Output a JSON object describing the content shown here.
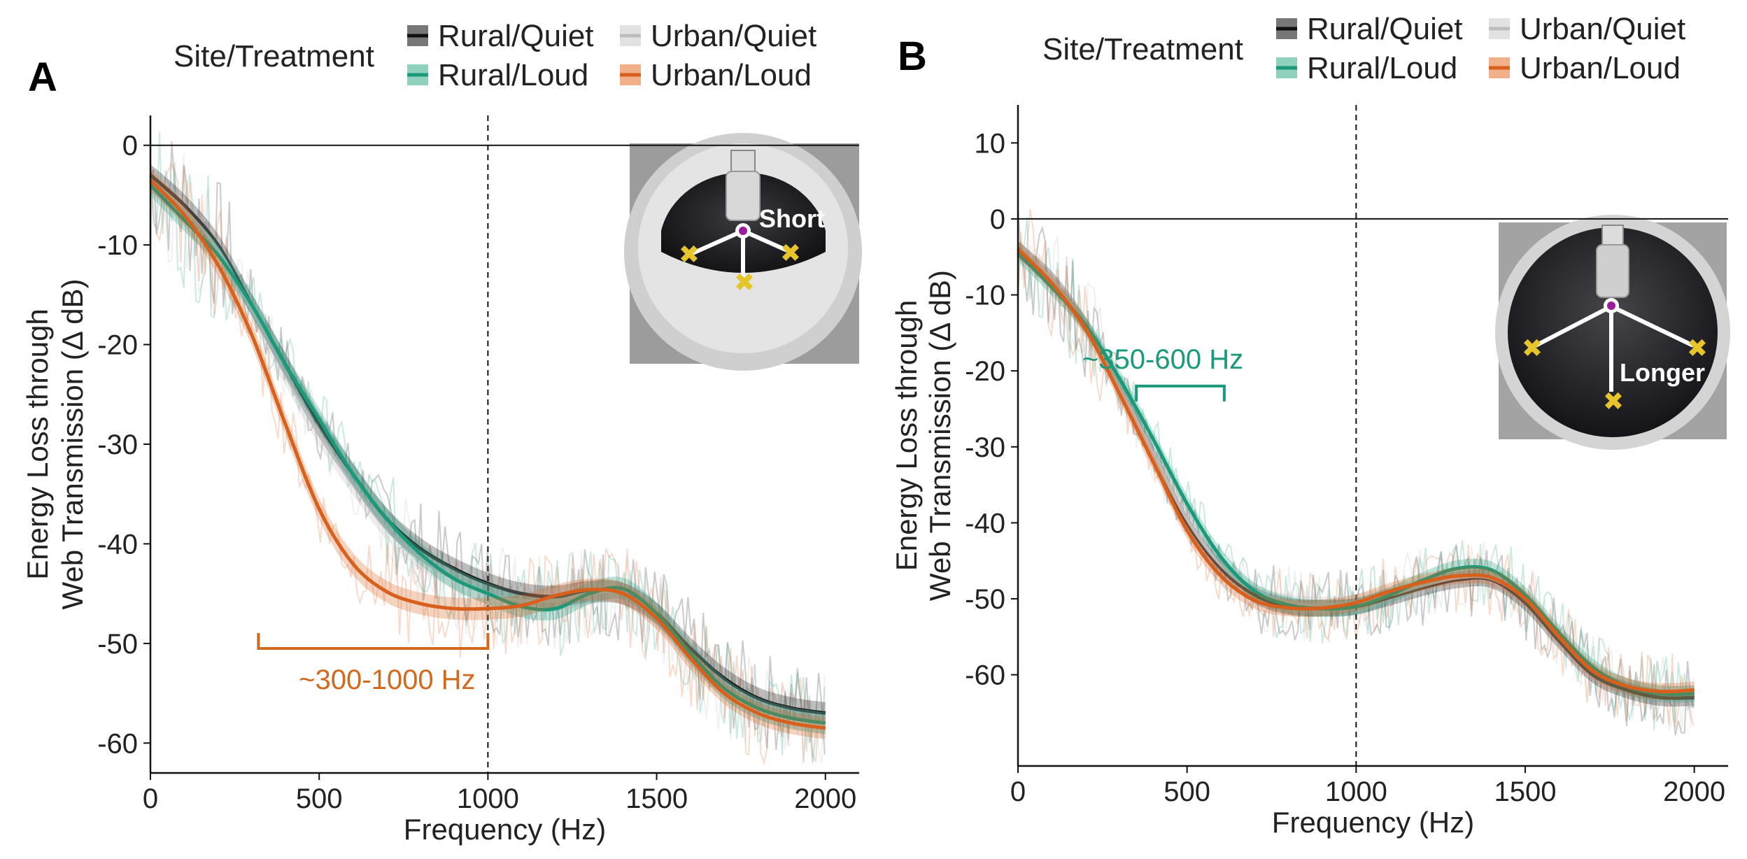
{
  "legend": {
    "title": "Site/Treatment",
    "entries": [
      "Rural/Quiet",
      "Urban/Quiet",
      "Rural/Loud",
      "Urban/Loud"
    ]
  },
  "colors": {
    "Rural/Quiet": "#111111",
    "Urban/Quiet": "#bdbdbd",
    "Rural/Loud": "#1a9a7a",
    "Urban/Loud": "#d9601c"
  },
  "chart_data": [
    {
      "type": "line",
      "panel": "A",
      "xlabel": "Frequency (Hz)",
      "ylabel": [
        "Energy Loss through",
        "Web Transmission (Δ dB)"
      ],
      "xlim": [
        0,
        2100
      ],
      "ylim": [
        -63,
        3
      ],
      "xticks": [
        "0",
        "500",
        "1000",
        "1500",
        "2000"
      ],
      "yticks": [
        "0",
        "-10",
        "-20",
        "-30",
        "-40",
        "-50",
        "-60"
      ],
      "hline": 0,
      "vline": 1000,
      "grid": false,
      "legend_position": "top",
      "x": [
        0,
        100,
        200,
        300,
        400,
        500,
        600,
        700,
        800,
        900,
        1000,
        1100,
        1200,
        1300,
        1400,
        1500,
        1600,
        1700,
        1800,
        1900,
        2000
      ],
      "series": [
        {
          "name": "Rural/Quiet",
          "values": [
            -3,
            -6,
            -10,
            -16,
            -22,
            -28,
            -33,
            -37.5,
            -40.5,
            -42.5,
            -44,
            -45,
            -45.3,
            -44.8,
            -45,
            -47,
            -50.5,
            -53.5,
            -55.5,
            -56.5,
            -57
          ]
        },
        {
          "name": "Urban/Quiet",
          "values": [
            -3.5,
            -6.5,
            -10.5,
            -16.5,
            -23,
            -29,
            -34,
            -38.5,
            -41.5,
            -43.5,
            -45,
            -45.7,
            -45.7,
            -45,
            -45,
            -47.3,
            -51,
            -54.5,
            -56.5,
            -57.5,
            -58
          ]
        },
        {
          "name": "Rural/Loud",
          "values": [
            -4,
            -7.5,
            -11,
            -16,
            -22,
            -27.5,
            -33,
            -37.5,
            -41,
            -43.5,
            -45,
            -46.3,
            -46.5,
            -45,
            -44.5,
            -47,
            -51,
            -54.5,
            -56.5,
            -57.5,
            -58
          ]
        },
        {
          "name": "Urban/Loud",
          "values": [
            -3.5,
            -7,
            -12,
            -19,
            -28,
            -36.5,
            -42,
            -44.8,
            -46,
            -46.5,
            -46.5,
            -46.2,
            -45.2,
            -44.6,
            -45,
            -47.5,
            -51.5,
            -55,
            -57,
            -58,
            -58.5
          ]
        }
      ],
      "annotation": {
        "text": "~300-1000 Hz",
        "range": [
          320,
          1000
        ],
        "y": -50.5,
        "color": "#d26a1e"
      },
      "inset_label": "Short"
    },
    {
      "type": "line",
      "panel": "B",
      "xlabel": "Frequency (Hz)",
      "ylabel": [
        "Energy Loss through",
        "Web Transmission (Δ dB)"
      ],
      "xlim": [
        0,
        2100
      ],
      "ylim": [
        -72,
        15
      ],
      "xticks": [
        "0",
        "500",
        "1000",
        "1500",
        "2000"
      ],
      "yticks": [
        "10",
        "0",
        "-10",
        "-20",
        "-30",
        "-40",
        "-50",
        "-60"
      ],
      "hline": 0,
      "vline": 1000,
      "grid": false,
      "legend_position": "top",
      "x": [
        0,
        100,
        200,
        300,
        400,
        500,
        600,
        700,
        800,
        900,
        1000,
        1100,
        1200,
        1300,
        1400,
        1500,
        1600,
        1700,
        1800,
        1900,
        2000
      ],
      "series": [
        {
          "name": "Rural/Quiet",
          "values": [
            -4,
            -8,
            -14,
            -22,
            -31,
            -40,
            -46,
            -49.5,
            -51,
            -51.2,
            -51,
            -49.8,
            -48.5,
            -47.5,
            -47.5,
            -50.5,
            -55.5,
            -60,
            -62,
            -63,
            -63
          ]
        },
        {
          "name": "Urban/Quiet",
          "values": [
            -4,
            -8,
            -14,
            -22,
            -31,
            -39.5,
            -45.5,
            -49,
            -50.5,
            -50.8,
            -50.5,
            -49.5,
            -48.2,
            -47.2,
            -47.3,
            -50,
            -55,
            -59.5,
            -61.5,
            -62.5,
            -62.5
          ]
        },
        {
          "name": "Rural/Loud",
          "values": [
            -4.5,
            -9,
            -14,
            -21,
            -29,
            -37.5,
            -44.5,
            -49,
            -50.8,
            -51.3,
            -51,
            -49.5,
            -47.5,
            -46,
            -46.2,
            -49.5,
            -54.5,
            -59,
            -61.5,
            -62.5,
            -62.5
          ]
        },
        {
          "name": "Urban/Loud",
          "values": [
            -4,
            -8.5,
            -14.5,
            -23,
            -32,
            -41,
            -47,
            -50.2,
            -51.2,
            -51.2,
            -50.5,
            -49,
            -47.8,
            -47,
            -47.2,
            -50,
            -55,
            -59.5,
            -61.5,
            -62.2,
            -62
          ]
        }
      ],
      "annotation": {
        "text": "~350-600 Hz",
        "range": [
          350,
          610
        ],
        "y": -22,
        "color": "#1a9a7a"
      },
      "inset_label": "Longer"
    }
  ]
}
